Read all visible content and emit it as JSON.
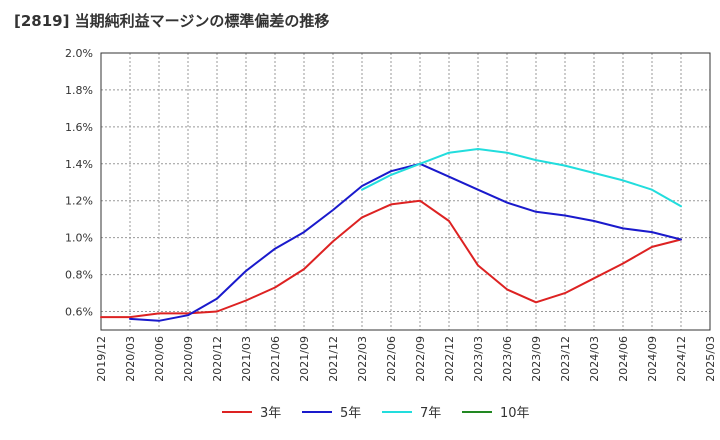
{
  "title": "[2819]  当期純利益マージンの標準偏差の推移",
  "chart_data": {
    "type": "line",
    "title": "[2819]  当期純利益マージンの標準偏差の推移",
    "xlabel": "",
    "ylabel": "",
    "x_ticks": [
      "2019/12",
      "2020/03",
      "2020/06",
      "2020/09",
      "2020/12",
      "2021/03",
      "2021/06",
      "2021/09",
      "2021/12",
      "2022/03",
      "2022/06",
      "2022/09",
      "2022/12",
      "2023/03",
      "2023/06",
      "2023/09",
      "2023/12",
      "2024/03",
      "2024/06",
      "2024/09",
      "2024/12",
      "2025/03"
    ],
    "y_ticks": [
      "0.6%",
      "0.8%",
      "1.0%",
      "1.2%",
      "1.4%",
      "1.6%",
      "1.8%",
      "2.0%"
    ],
    "ylim": [
      0.5,
      2.0
    ],
    "grid": true,
    "legend_position": "bottom",
    "series": [
      {
        "name": "3年",
        "color": "#dd2222",
        "x": [
          "2019/12",
          "2020/03",
          "2020/06",
          "2020/09",
          "2020/12",
          "2021/03",
          "2021/06",
          "2021/09",
          "2021/12",
          "2022/03",
          "2022/06",
          "2022/09",
          "2022/12",
          "2023/03",
          "2023/06",
          "2023/09",
          "2023/12",
          "2024/03",
          "2024/06",
          "2024/09",
          "2024/12"
        ],
        "values": [
          0.57,
          0.57,
          0.59,
          0.59,
          0.6,
          0.66,
          0.73,
          0.83,
          0.98,
          1.11,
          1.18,
          1.2,
          1.09,
          0.85,
          0.72,
          0.65,
          0.7,
          0.78,
          0.86,
          0.95,
          0.99
        ]
      },
      {
        "name": "5年",
        "color": "#1a1acc",
        "x": [
          "2020/03",
          "2020/06",
          "2020/09",
          "2020/12",
          "2021/03",
          "2021/06",
          "2021/09",
          "2021/12",
          "2022/03",
          "2022/06",
          "2022/09",
          "2022/12",
          "2023/03",
          "2023/06",
          "2023/09",
          "2023/12",
          "2024/03",
          "2024/06",
          "2024/09",
          "2024/12"
        ],
        "values": [
          0.56,
          0.55,
          0.58,
          0.67,
          0.82,
          0.94,
          1.03,
          1.15,
          1.28,
          1.36,
          1.4,
          1.33,
          1.26,
          1.19,
          1.14,
          1.12,
          1.09,
          1.05,
          1.03,
          0.99
        ]
      },
      {
        "name": "7年",
        "color": "#22dddd",
        "x": [
          "2022/03",
          "2022/06",
          "2022/09",
          "2022/12",
          "2023/03",
          "2023/06",
          "2023/09",
          "2023/12",
          "2024/03",
          "2024/06",
          "2024/09",
          "2024/12"
        ],
        "values": [
          1.26,
          1.34,
          1.4,
          1.46,
          1.48,
          1.46,
          1.42,
          1.39,
          1.35,
          1.31,
          1.26,
          1.17
        ]
      },
      {
        "name": "10年",
        "color": "#228822",
        "x": [],
        "values": []
      }
    ]
  }
}
